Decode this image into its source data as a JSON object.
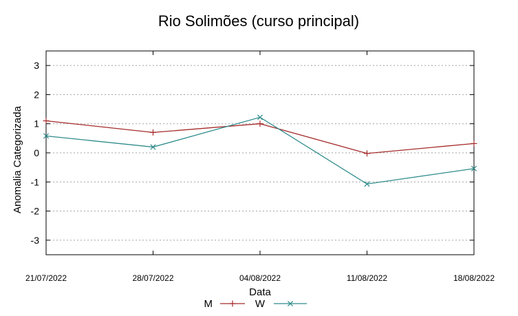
{
  "chart_data": {
    "type": "line",
    "title": "Rio Solimões (curso principal)",
    "xlabel": "Data",
    "ylabel": "Anomalia Categorizada",
    "categories": [
      "21/07/2022",
      "28/07/2022",
      "04/08/2022",
      "11/08/2022",
      "18/08/2022"
    ],
    "ylim": [
      -3.5,
      3.5
    ],
    "yticks": [
      "3",
      "2",
      "1",
      "0",
      "-1",
      "-2",
      "-3"
    ],
    "grid": true,
    "legend_position": "bottom",
    "series": [
      {
        "name": "M",
        "color": "#a52a2a",
        "marker": "plus",
        "values": [
          1.1,
          0.7,
          1.0,
          -0.02,
          0.32
        ]
      },
      {
        "name": "W",
        "color": "#2e8b8b",
        "marker": "cross",
        "values": [
          0.58,
          0.2,
          1.22,
          -1.07,
          -0.54
        ]
      }
    ]
  }
}
